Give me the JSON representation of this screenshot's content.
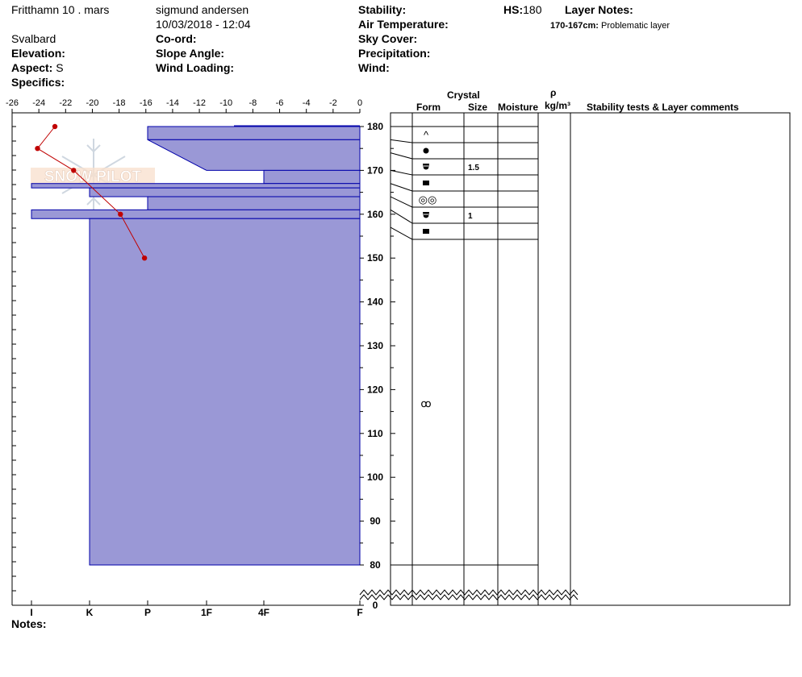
{
  "header": {
    "location_name": "Fritthamn 10 . mars",
    "observer": "sigmund andersen",
    "datetime": "10/03/2018 - 12:04",
    "region": "Svalbard",
    "labels": {
      "coord": "Co-ord:",
      "elevation": "Elevation:",
      "slope_angle": "Slope Angle:",
      "aspect": "Aspect:",
      "wind_loading": "Wind Loading:",
      "specifics": "Specifics:",
      "stability": "Stability:",
      "air_temperature": "Air Temperature:",
      "sky_cover": "Sky Cover:",
      "precipitation": "Precipitation:",
      "wind": "Wind:",
      "hs": "HS:",
      "layer_notes": "Layer Notes:"
    },
    "aspect_value": "S",
    "hs_value": "180",
    "layer_note_range": "170-167cm:",
    "layer_note_text": "Problematic layer"
  },
  "watermark": "SNOW PILOT",
  "columns": {
    "crystal": "Crystal",
    "form": "Form",
    "size": "Size",
    "moisture": "Moisture",
    "rho": "ρ",
    "density_unit": "kg/m³",
    "comments": "Stability tests & Layer comments"
  },
  "notes_label": "Notes:",
  "chart_data": {
    "type": "area",
    "title": "",
    "temperature_axis": {
      "ticks": [
        -26,
        -24,
        -22,
        -20,
        -18,
        -16,
        -14,
        -12,
        -10,
        -8,
        -6,
        -4,
        -2,
        0
      ],
      "range": [
        -26,
        0
      ]
    },
    "height_axis": {
      "ticks": [
        180,
        170,
        160,
        150,
        140,
        130,
        120,
        110,
        100,
        90,
        80,
        0
      ],
      "range": [
        0,
        180
      ],
      "break": [
        0,
        80
      ]
    },
    "hardness_axis": [
      "I",
      "K",
      "P",
      "1F",
      "4F",
      "F"
    ],
    "hardness_profile": [
      {
        "top": 180,
        "bottom": 177,
        "hardness": "P"
      },
      {
        "top": 177,
        "bottom": 170,
        "hardness": "1F"
      },
      {
        "top": 170,
        "bottom": 167,
        "hardness": "4F"
      },
      {
        "top": 167,
        "bottom": 166,
        "hardness": "I"
      },
      {
        "top": 166,
        "bottom": 164,
        "hardness": "K"
      },
      {
        "top": 164,
        "bottom": 161,
        "hardness": "P"
      },
      {
        "top": 161,
        "bottom": 159,
        "hardness": "I"
      },
      {
        "top": 159,
        "bottom": 80,
        "hardness": "K"
      }
    ],
    "temperature_profile": [
      {
        "height": 180,
        "temp": -22.8
      },
      {
        "height": 175,
        "temp": -24.1
      },
      {
        "height": 170,
        "temp": -21.4
      },
      {
        "height": 160,
        "temp": -17.9
      },
      {
        "height": 150,
        "temp": -16.1
      }
    ],
    "layers": [
      {
        "top": 180,
        "bottom": 177,
        "form_symbol": "^",
        "size": ""
      },
      {
        "top": 177,
        "bottom": 174,
        "form_symbol": "●",
        "size": ""
      },
      {
        "top": 174,
        "bottom": 170,
        "form_symbol": "cup",
        "size": "1.5"
      },
      {
        "top": 170,
        "bottom": 167,
        "form_symbol": "■",
        "size": ""
      },
      {
        "top": 167,
        "bottom": 164,
        "form_symbol": "◎◎",
        "size": ""
      },
      {
        "top": 164,
        "bottom": 161,
        "form_symbol": "cup",
        "size": "1"
      },
      {
        "top": 161,
        "bottom": 157,
        "form_symbol": "■",
        "size": ""
      },
      {
        "top": 157,
        "bottom": 80,
        "form_symbol": "ꝏ",
        "size": ""
      }
    ],
    "colors": {
      "hardness_fill": "#9a98d6",
      "hardness_edge": "#0000aa",
      "temperature": "#c00000"
    }
  }
}
